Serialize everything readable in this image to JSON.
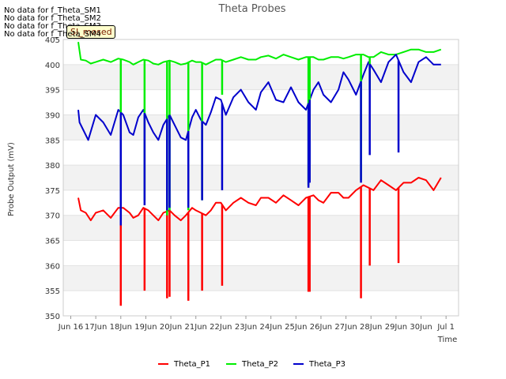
{
  "no_data_messages": [
    "No data for f_Theta_SM1",
    "No data for f_Theta_SM2",
    "No data for f_Theta_SM3",
    "No data for f_Theta_SM4"
  ],
  "badge_label": "SI_mosed",
  "chart_data": {
    "type": "line",
    "title": "Theta Probes",
    "xlabel": "Time",
    "ylabel": "Probe Output (mV)",
    "xlim": [
      15.7,
      31.5
    ],
    "ylim": [
      350,
      405
    ],
    "x_ticks": [
      {
        "v": 16,
        "label": "Jun 16"
      },
      {
        "v": 17,
        "label": "17Jun"
      },
      {
        "v": 18,
        "label": "18Jun"
      },
      {
        "v": 19,
        "label": "19Jun"
      },
      {
        "v": 20,
        "label": "20Jun"
      },
      {
        "v": 21,
        "label": "21Jun"
      },
      {
        "v": 22,
        "label": "22Jun"
      },
      {
        "v": 23,
        "label": "23Jun"
      },
      {
        "v": 24,
        "label": "24Jun"
      },
      {
        "v": 25,
        "label": "25Jun"
      },
      {
        "v": 26,
        "label": "26Jun"
      },
      {
        "v": 27,
        "label": "27Jun"
      },
      {
        "v": 28,
        "label": "28Jun"
      },
      {
        "v": 29,
        "label": "29Jun"
      },
      {
        "v": 30,
        "label": "30Jun"
      },
      {
        "v": 31,
        "label": "Jul 1"
      }
    ],
    "y_ticks": [
      350,
      355,
      360,
      365,
      370,
      375,
      380,
      385,
      390,
      395,
      400,
      405
    ],
    "legend": [
      "Theta_P1",
      "Theta_P2",
      "Theta_P3"
    ],
    "series": [
      {
        "name": "Theta_P1",
        "color": "#ff0000",
        "x": [
          16.3,
          16.4,
          16.6,
          16.8,
          17.0,
          17.3,
          17.6,
          17.9,
          18.1,
          18.35,
          18.5,
          18.7,
          18.9,
          19.1,
          19.3,
          19.5,
          19.7,
          19.95,
          20.15,
          20.4,
          20.6,
          20.85,
          21.0,
          21.2,
          21.4,
          21.6,
          21.8,
          22.0,
          22.2,
          22.5,
          22.8,
          23.1,
          23.4,
          23.6,
          23.9,
          24.2,
          24.5,
          24.8,
          25.1,
          25.4,
          25.7,
          25.9,
          26.1,
          26.4,
          26.7,
          26.9,
          27.1,
          27.4,
          27.7,
          27.9,
          28.1,
          28.4,
          28.7,
          29.0,
          29.3,
          29.6,
          29.9,
          30.2,
          30.5,
          30.8
        ],
        "y": [
          373.5,
          371.0,
          370.5,
          369.0,
          370.5,
          371.0,
          369.5,
          371.5,
          371.5,
          370.5,
          369.5,
          370.0,
          371.5,
          371.0,
          370.0,
          369.0,
          370.5,
          371.0,
          370.0,
          369.0,
          370.0,
          371.5,
          371.0,
          370.5,
          370.0,
          371.0,
          372.5,
          372.5,
          371.0,
          372.5,
          373.5,
          372.5,
          372.0,
          373.5,
          373.5,
          372.5,
          374.0,
          373.0,
          372.0,
          373.5,
          374.0,
          373.0,
          372.5,
          374.5,
          374.5,
          373.5,
          373.5,
          375.0,
          376.0,
          375.5,
          375.0,
          377.0,
          376.0,
          375.0,
          376.5,
          376.5,
          377.5,
          377.0,
          375.0,
          377.5
        ]
      },
      {
        "name": "Theta_P2",
        "color": "#00ee00",
        "x": [
          16.3,
          16.4,
          16.6,
          16.8,
          17.0,
          17.3,
          17.6,
          17.9,
          18.1,
          18.35,
          18.5,
          18.7,
          18.9,
          19.1,
          19.3,
          19.5,
          19.7,
          19.95,
          20.15,
          20.4,
          20.6,
          20.85,
          21.0,
          21.2,
          21.4,
          21.6,
          21.8,
          22.0,
          22.2,
          22.5,
          22.8,
          23.1,
          23.4,
          23.6,
          23.9,
          24.2,
          24.5,
          24.8,
          25.1,
          25.4,
          25.7,
          25.9,
          26.1,
          26.4,
          26.7,
          26.9,
          27.1,
          27.4,
          27.7,
          27.9,
          28.1,
          28.4,
          28.7,
          29.0,
          29.3,
          29.6,
          29.9,
          30.2,
          30.5,
          30.8
        ],
        "y": [
          404.5,
          401.0,
          400.8,
          400.2,
          400.5,
          401.0,
          400.5,
          401.2,
          401.0,
          400.5,
          400.0,
          400.5,
          401.0,
          400.8,
          400.2,
          400.0,
          400.5,
          400.8,
          400.5,
          400.0,
          400.2,
          400.8,
          400.5,
          400.5,
          400.0,
          400.5,
          401.0,
          401.0,
          400.5,
          401.0,
          401.5,
          401.0,
          401.0,
          401.5,
          401.8,
          401.2,
          402.0,
          401.5,
          401.0,
          401.5,
          401.5,
          401.0,
          401.0,
          401.5,
          401.5,
          401.2,
          401.5,
          402.0,
          402.0,
          401.5,
          401.5,
          402.5,
          402.0,
          402.0,
          402.5,
          403.0,
          403.0,
          402.5,
          402.5,
          403.0
        ]
      },
      {
        "name": "Theta_P3",
        "color": "#0000cc",
        "x": [
          16.3,
          16.35,
          16.5,
          16.7,
          17.0,
          17.3,
          17.6,
          17.9,
          18.1,
          18.35,
          18.5,
          18.7,
          18.9,
          19.1,
          19.3,
          19.5,
          19.7,
          19.95,
          20.15,
          20.4,
          20.6,
          20.85,
          21.0,
          21.2,
          21.4,
          21.6,
          21.8,
          22.0,
          22.2,
          22.5,
          22.8,
          23.1,
          23.4,
          23.6,
          23.9,
          24.2,
          24.5,
          24.8,
          25.1,
          25.4,
          25.7,
          25.9,
          26.1,
          26.4,
          26.7,
          26.9,
          27.1,
          27.4,
          27.7,
          27.9,
          28.1,
          28.4,
          28.7,
          29.0,
          29.3,
          29.6,
          29.9,
          30.2,
          30.5,
          30.8
        ],
        "y": [
          391.0,
          388.5,
          387.0,
          385.0,
          390.0,
          388.5,
          386.0,
          391.0,
          390.0,
          386.5,
          386.0,
          389.5,
          391.0,
          388.5,
          386.5,
          385.0,
          388.0,
          390.0,
          388.0,
          385.5,
          385.0,
          389.5,
          391.0,
          389.0,
          388.0,
          390.5,
          393.5,
          393.0,
          390.0,
          393.5,
          395.0,
          392.5,
          391.0,
          394.5,
          396.5,
          393.0,
          392.5,
          395.5,
          392.5,
          391.0,
          395.0,
          396.5,
          394.0,
          392.5,
          395.0,
          398.5,
          397.0,
          394.0,
          398.0,
          400.5,
          399.0,
          396.5,
          400.5,
          402.0,
          398.5,
          396.5,
          400.5,
          401.5,
          400.0,
          400.0
        ]
      }
    ],
    "dips": [
      {
        "series": "Theta_P1",
        "x": 18.0,
        "y": 352.0
      },
      {
        "series": "Theta_P1",
        "x": 18.95,
        "y": 355.0
      },
      {
        "series": "Theta_P1",
        "x": 19.85,
        "y": 353.5
      },
      {
        "series": "Theta_P1",
        "x": 19.95,
        "y": 353.8
      },
      {
        "series": "Theta_P1",
        "x": 20.7,
        "y": 353.0
      },
      {
        "series": "Theta_P1",
        "x": 21.25,
        "y": 355.0
      },
      {
        "series": "Theta_P1",
        "x": 22.05,
        "y": 356.0
      },
      {
        "series": "Theta_P1",
        "x": 25.5,
        "y": 354.8
      },
      {
        "series": "Theta_P1",
        "x": 25.55,
        "y": 354.8
      },
      {
        "series": "Theta_P1",
        "x": 27.6,
        "y": 353.5
      },
      {
        "series": "Theta_P1",
        "x": 27.95,
        "y": 360.0
      },
      {
        "series": "Theta_P1",
        "x": 29.1,
        "y": 360.5
      },
      {
        "series": "Theta_P2",
        "x": 18.0,
        "y": 369.0
      },
      {
        "series": "Theta_P2",
        "x": 18.95,
        "y": 373.0
      },
      {
        "series": "Theta_P2",
        "x": 19.85,
        "y": 370.0
      },
      {
        "series": "Theta_P2",
        "x": 19.95,
        "y": 371.0
      },
      {
        "series": "Theta_P2",
        "x": 20.7,
        "y": 371.0
      },
      {
        "series": "Theta_P2",
        "x": 21.25,
        "y": 373.0
      },
      {
        "series": "Theta_P2",
        "x": 22.05,
        "y": 394.0
      },
      {
        "series": "Theta_P2",
        "x": 25.5,
        "y": 376.0
      },
      {
        "series": "Theta_P2",
        "x": 25.55,
        "y": 377.0
      },
      {
        "series": "Theta_P2",
        "x": 27.6,
        "y": 377.0
      },
      {
        "series": "Theta_P2",
        "x": 27.95,
        "y": 395.0
      },
      {
        "series": "Theta_P3",
        "x": 18.0,
        "y": 368.0
      },
      {
        "series": "Theta_P3",
        "x": 18.95,
        "y": 372.0
      },
      {
        "series": "Theta_P3",
        "x": 19.85,
        "y": 371.0
      },
      {
        "series": "Theta_P3",
        "x": 19.95,
        "y": 371.5
      },
      {
        "series": "Theta_P3",
        "x": 20.7,
        "y": 371.5
      },
      {
        "series": "Theta_P3",
        "x": 21.25,
        "y": 373.0
      },
      {
        "series": "Theta_P3",
        "x": 22.05,
        "y": 375.0
      },
      {
        "series": "Theta_P3",
        "x": 25.5,
        "y": 375.5
      },
      {
        "series": "Theta_P3",
        "x": 25.55,
        "y": 376.5
      },
      {
        "series": "Theta_P3",
        "x": 27.6,
        "y": 376.5
      },
      {
        "series": "Theta_P3",
        "x": 27.95,
        "y": 382.0
      },
      {
        "series": "Theta_P3",
        "x": 29.1,
        "y": 382.5
      }
    ]
  }
}
